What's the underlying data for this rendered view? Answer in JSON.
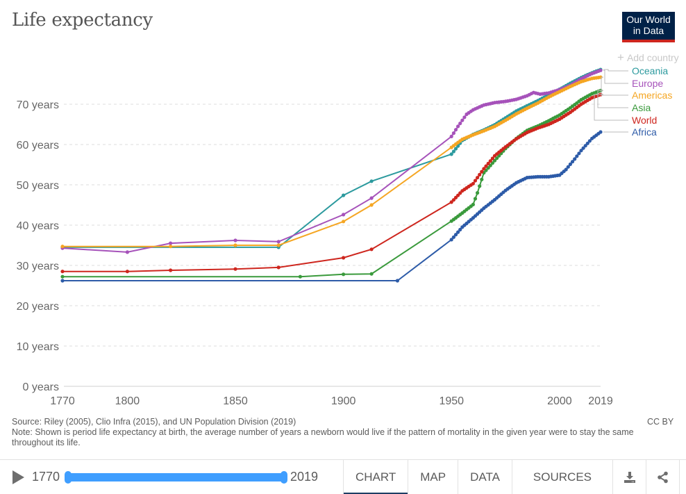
{
  "header": {
    "title": "Life expectancy",
    "logo_line1": "Our World",
    "logo_line2": "in Data",
    "add_country_label": "Add country"
  },
  "footer": {
    "source": "Source: Riley (2005), Clio Infra (2015), and UN Population Division (2019)",
    "note": "Note: Shown is period life expectancy at birth, the average number of years a newborn would live if the pattern of mortality in the given year were to stay the same throughout its life.",
    "license": "CC BY"
  },
  "controls": {
    "year_start": "1770",
    "year_end": "2019",
    "slider_range": [
      1770,
      2019
    ],
    "tabs": [
      {
        "label": "CHART",
        "active": true
      },
      {
        "label": "MAP",
        "active": false
      },
      {
        "label": "DATA",
        "active": false
      },
      {
        "label": "SOURCES",
        "active": false
      }
    ],
    "icons": [
      "download-icon",
      "share-icon",
      "fullscreen-icon"
    ]
  },
  "colors": {
    "accent_blue": "#3f9eff",
    "logo_bg": "#002147",
    "logo_stripe": "#ce261e",
    "active_tab": "#1d3d63"
  },
  "chart_data": {
    "type": "line",
    "title": "Life expectancy",
    "xlabel": "",
    "ylabel": "",
    "xlim": [
      1770,
      2019
    ],
    "ylim": [
      0,
      70
    ],
    "x_ticks": [
      1770,
      1800,
      1850,
      1900,
      1950,
      2000,
      2019
    ],
    "y_ticks": [
      {
        "value": 0,
        "label": "0 years"
      },
      {
        "value": 10,
        "label": "10 years"
      },
      {
        "value": 20,
        "label": "20 years"
      },
      {
        "value": 30,
        "label": "30 years"
      },
      {
        "value": 40,
        "label": "40 years"
      },
      {
        "value": 50,
        "label": "50 years"
      },
      {
        "value": 60,
        "label": "60 years"
      },
      {
        "value": 70,
        "label": "70 years"
      }
    ],
    "grid": "horizontal-dashed",
    "legend": "right",
    "series": [
      {
        "name": "Oceania",
        "color": "#2c9a9e",
        "points": [
          [
            1770,
            34.5
          ],
          [
            1870,
            34.5
          ],
          [
            1900,
            47.4
          ],
          [
            1913,
            50.9
          ],
          [
            1950,
            57.6
          ],
          [
            1955,
            61.0
          ],
          [
            1960,
            62.5
          ],
          [
            1965,
            63.6
          ],
          [
            1970,
            64.9
          ],
          [
            1975,
            66.6
          ],
          [
            1980,
            68.3
          ],
          [
            1985,
            69.6
          ],
          [
            1990,
            70.9
          ],
          [
            1995,
            72.3
          ],
          [
            2000,
            73.7
          ],
          [
            2005,
            75.2
          ],
          [
            2010,
            76.6
          ],
          [
            2015,
            77.8
          ],
          [
            2019,
            78.6
          ]
        ]
      },
      {
        "name": "Europe",
        "color": "#a652ba",
        "points": [
          [
            1770,
            34.3
          ],
          [
            1800,
            33.3
          ],
          [
            1820,
            35.5
          ],
          [
            1850,
            36.2
          ],
          [
            1870,
            35.9
          ],
          [
            1900,
            42.6
          ],
          [
            1913,
            46.7
          ],
          [
            1950,
            62.0
          ],
          [
            1953,
            64.5
          ],
          [
            1957,
            67.5
          ],
          [
            1960,
            68.6
          ],
          [
            1965,
            69.8
          ],
          [
            1970,
            70.4
          ],
          [
            1975,
            70.7
          ],
          [
            1980,
            71.2
          ],
          [
            1985,
            72.1
          ],
          [
            1988,
            72.9
          ],
          [
            1991,
            72.5
          ],
          [
            1995,
            72.8
          ],
          [
            2000,
            73.6
          ],
          [
            2005,
            74.7
          ],
          [
            2010,
            76.3
          ],
          [
            2015,
            77.6
          ],
          [
            2019,
            78.4
          ]
        ]
      },
      {
        "name": "Americas",
        "color": "#f5a623",
        "points": [
          [
            1770,
            34.7
          ],
          [
            1820,
            34.7
          ],
          [
            1850,
            35.0
          ],
          [
            1870,
            35.0
          ],
          [
            1900,
            40.9
          ],
          [
            1913,
            45.0
          ],
          [
            1950,
            59.3
          ],
          [
            1955,
            61.3
          ],
          [
            1960,
            62.4
          ],
          [
            1965,
            63.4
          ],
          [
            1970,
            64.5
          ],
          [
            1975,
            66.0
          ],
          [
            1980,
            67.6
          ],
          [
            1985,
            69.0
          ],
          [
            1990,
            70.3
          ],
          [
            1995,
            71.8
          ],
          [
            2000,
            73.1
          ],
          [
            2005,
            74.4
          ],
          [
            2010,
            75.6
          ],
          [
            2015,
            76.4
          ],
          [
            2019,
            76.7
          ]
        ]
      },
      {
        "name": "Asia",
        "color": "#3a9a3c",
        "points": [
          [
            1770,
            27.2
          ],
          [
            1880,
            27.2
          ],
          [
            1900,
            27.8
          ],
          [
            1913,
            27.9
          ],
          [
            1950,
            41.0
          ],
          [
            1955,
            43.0
          ],
          [
            1960,
            45.1
          ],
          [
            1962,
            48.0
          ],
          [
            1965,
            53.0
          ],
          [
            1970,
            56.0
          ],
          [
            1975,
            59.0
          ],
          [
            1980,
            61.5
          ],
          [
            1985,
            63.5
          ],
          [
            1990,
            64.6
          ],
          [
            1995,
            65.9
          ],
          [
            2000,
            67.3
          ],
          [
            2005,
            69.1
          ],
          [
            2010,
            71.1
          ],
          [
            2015,
            72.6
          ],
          [
            2019,
            73.4
          ]
        ]
      },
      {
        "name": "World",
        "color": "#ce261e",
        "points": [
          [
            1770,
            28.5
          ],
          [
            1800,
            28.5
          ],
          [
            1820,
            28.8
          ],
          [
            1850,
            29.1
          ],
          [
            1870,
            29.5
          ],
          [
            1900,
            31.9
          ],
          [
            1913,
            34.0
          ],
          [
            1950,
            45.7
          ],
          [
            1955,
            48.5
          ],
          [
            1960,
            50.3
          ],
          [
            1965,
            54.0
          ],
          [
            1970,
            57.2
          ],
          [
            1975,
            59.4
          ],
          [
            1980,
            61.4
          ],
          [
            1985,
            63.0
          ],
          [
            1990,
            64.1
          ],
          [
            1995,
            65.0
          ],
          [
            2000,
            66.3
          ],
          [
            2005,
            68.0
          ],
          [
            2010,
            70.0
          ],
          [
            2015,
            71.6
          ],
          [
            2019,
            72.4
          ]
        ]
      },
      {
        "name": "Africa",
        "color": "#2d5ba8",
        "points": [
          [
            1770,
            26.2
          ],
          [
            1925,
            26.2
          ],
          [
            1950,
            36.4
          ],
          [
            1955,
            39.5
          ],
          [
            1960,
            41.8
          ],
          [
            1965,
            44.2
          ],
          [
            1970,
            46.3
          ],
          [
            1975,
            48.6
          ],
          [
            1980,
            50.5
          ],
          [
            1985,
            51.8
          ],
          [
            1990,
            52.0
          ],
          [
            1995,
            52.0
          ],
          [
            2000,
            52.4
          ],
          [
            2003,
            53.8
          ],
          [
            2007,
            56.4
          ],
          [
            2010,
            58.5
          ],
          [
            2015,
            61.5
          ],
          [
            2019,
            63.1
          ]
        ]
      }
    ]
  }
}
